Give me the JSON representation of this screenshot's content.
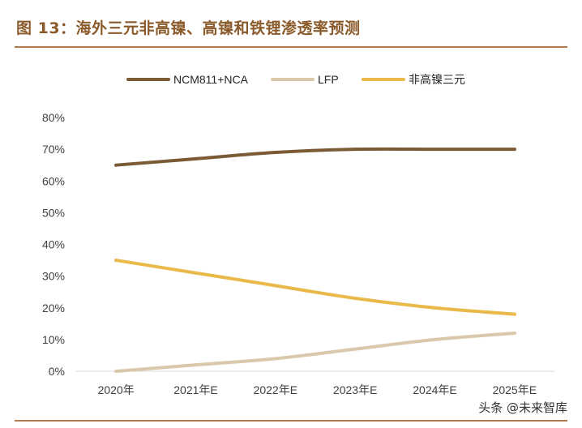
{
  "header": {
    "title": "图 13：海外三元非高镍、高镍和铁锂渗透率预测"
  },
  "watermark": {
    "text": "头条 @未来智库"
  },
  "colors": {
    "rule": "#B07B4F",
    "title": "#8B5A2B",
    "axis": "#D9D9D9"
  },
  "chart_data": {
    "type": "line",
    "title": "",
    "xlabel": "",
    "ylabel": "",
    "categories": [
      "2020年",
      "2021年E",
      "2022年E",
      "2023年E",
      "2024年E",
      "2025年E"
    ],
    "yticks": [
      "0%",
      "10%",
      "20%",
      "30%",
      "40%",
      "50%",
      "60%",
      "70%",
      "80%"
    ],
    "ylim": [
      0,
      80
    ],
    "legend_position": "top",
    "series": [
      {
        "name": "NCM811+NCA",
        "color": "#7B5A36",
        "values": [
          65,
          67,
          69,
          70,
          70,
          70
        ]
      },
      {
        "name": "LFP",
        "color": "#D9C8A9",
        "values": [
          0,
          2,
          4,
          7,
          10,
          12
        ]
      },
      {
        "name": "非高镍三元",
        "color": "#E9B949",
        "values": [
          35,
          31,
          27,
          23,
          20,
          18
        ]
      }
    ]
  }
}
